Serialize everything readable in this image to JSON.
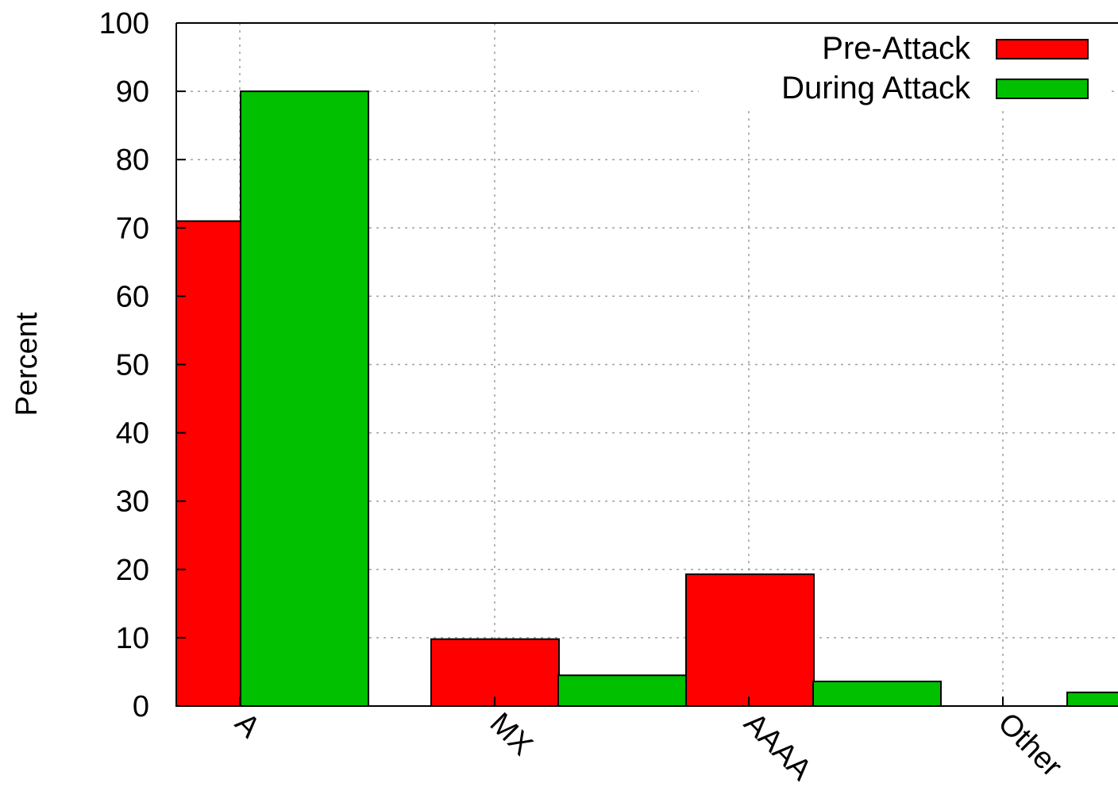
{
  "chart_data": {
    "type": "bar",
    "title": "",
    "xlabel": "",
    "ylabel": "Percent",
    "ylim": [
      0,
      100
    ],
    "yticks": [
      0,
      10,
      20,
      30,
      40,
      50,
      60,
      70,
      80,
      90,
      100
    ],
    "categories": [
      "A",
      "MX",
      "AAAA",
      "Other"
    ],
    "series": [
      {
        "name": "Pre-Attack",
        "color": "#ff0000",
        "values": [
          71,
          9.8,
          19.3,
          0
        ]
      },
      {
        "name": "During Attack",
        "color": "#00c000",
        "values": [
          90,
          4.5,
          3.6,
          2
        ]
      }
    ],
    "grid": true,
    "legend_position": "top-right"
  }
}
